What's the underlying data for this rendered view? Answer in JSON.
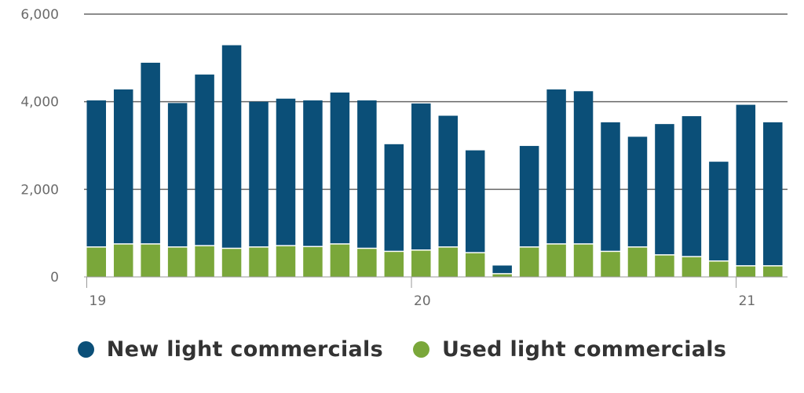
{
  "chart_data": {
    "type": "bar",
    "stacked": true,
    "x_tick_labels": [
      {
        "label": "19",
        "index": 0
      },
      {
        "label": "20",
        "index": 12
      },
      {
        "label": "21",
        "index": 24
      }
    ],
    "series": [
      {
        "name": "Used light commercials",
        "color": "#7aa73a",
        "values": [
          670,
          740,
          740,
          670,
          700,
          640,
          670,
          700,
          680,
          740,
          640,
          570,
          600,
          670,
          540,
          60,
          670,
          740,
          740,
          570,
          670,
          490,
          450,
          350,
          240,
          240
        ]
      },
      {
        "name": "New light commercials",
        "color": "#0b4f78",
        "values": [
          3360,
          3540,
          4150,
          3300,
          3920,
          4650,
          3330,
          3370,
          3350,
          3470,
          3390,
          2460,
          3360,
          3010,
          2350,
          200,
          2320,
          3540,
          3500,
          2960,
          2530,
          3000,
          3220,
          2280,
          3690,
          3290
        ]
      }
    ],
    "ylim": [
      0,
      6000
    ],
    "yticks": [
      {
        "value": 0,
        "label": "0"
      },
      {
        "value": 2000,
        "label": "2,000"
      },
      {
        "value": 4000,
        "label": "4,000"
      },
      {
        "value": 6000,
        "label": "6,000"
      }
    ],
    "grid": true,
    "legend_position": "bottom"
  },
  "legend": {
    "items": [
      {
        "label": "New light commercials",
        "color": "#0b4f78"
      },
      {
        "label": "Used light commercials",
        "color": "#7aa73a"
      }
    ]
  }
}
